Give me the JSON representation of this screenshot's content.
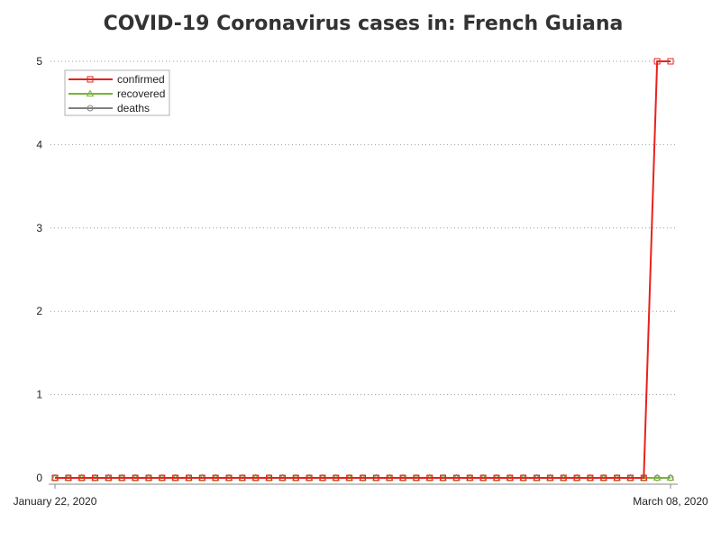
{
  "chart_data": {
    "type": "line",
    "title": "COVID-19 Coronavirus cases in: French Guiana",
    "xlabel": "",
    "ylabel": "",
    "x_start": "January 22, 2020",
    "x_end": "March 08, 2020",
    "x_tick_labels": [
      "January 22, 2020",
      "March 08, 2020"
    ],
    "ylim": [
      0,
      5
    ],
    "y_ticks": [
      "0",
      "1",
      "2",
      "3",
      "4",
      "5"
    ],
    "grid": "horizontal dotted",
    "legend_position": "top-left",
    "series": [
      {
        "name": "confirmed",
        "color": "#e8221b",
        "marker": "square",
        "values": [
          0,
          0,
          0,
          0,
          0,
          0,
          0,
          0,
          0,
          0,
          0,
          0,
          0,
          0,
          0,
          0,
          0,
          0,
          0,
          0,
          0,
          0,
          0,
          0,
          0,
          0,
          0,
          0,
          0,
          0,
          0,
          0,
          0,
          0,
          0,
          0,
          0,
          0,
          0,
          0,
          0,
          0,
          0,
          0,
          0,
          5,
          5
        ]
      },
      {
        "name": "recovered",
        "color": "#7ab33b",
        "marker": "triangle",
        "values": [
          0,
          0,
          0,
          0,
          0,
          0,
          0,
          0,
          0,
          0,
          0,
          0,
          0,
          0,
          0,
          0,
          0,
          0,
          0,
          0,
          0,
          0,
          0,
          0,
          0,
          0,
          0,
          0,
          0,
          0,
          0,
          0,
          0,
          0,
          0,
          0,
          0,
          0,
          0,
          0,
          0,
          0,
          0,
          0,
          0,
          0,
          0
        ]
      },
      {
        "name": "deaths",
        "color": "#808080",
        "marker": "circle",
        "values": [
          0,
          0,
          0,
          0,
          0,
          0,
          0,
          0,
          0,
          0,
          0,
          0,
          0,
          0,
          0,
          0,
          0,
          0,
          0,
          0,
          0,
          0,
          0,
          0,
          0,
          0,
          0,
          0,
          0,
          0,
          0,
          0,
          0,
          0,
          0,
          0,
          0,
          0,
          0,
          0,
          0,
          0,
          0,
          0,
          0,
          0,
          0
        ]
      }
    ]
  }
}
